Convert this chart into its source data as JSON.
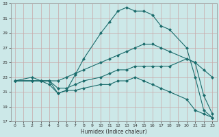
{
  "xlabel": "Humidex (Indice chaleur)",
  "bg_color": "#cce8e8",
  "line_color": "#1a6b6b",
  "grid_color": "#c8a8a8",
  "xlim": [
    -0.5,
    23.5
  ],
  "ylim": [
    17,
    33
  ],
  "yticks": [
    17,
    19,
    21,
    23,
    25,
    27,
    29,
    31,
    33
  ],
  "xticks": [
    0,
    1,
    2,
    3,
    4,
    5,
    6,
    7,
    8,
    9,
    10,
    11,
    12,
    13,
    14,
    15,
    16,
    17,
    18,
    19,
    20,
    21,
    22,
    23
  ],
  "line1_x": [
    0,
    2,
    3,
    4,
    5,
    6,
    7,
    8,
    10,
    11,
    12,
    13,
    14,
    15,
    16,
    17,
    18,
    20,
    21,
    22,
    23
  ],
  "line1_y": [
    22.5,
    23.0,
    22.5,
    22.5,
    20.8,
    21.2,
    23.3,
    25.5,
    29.0,
    30.5,
    32.0,
    32.5,
    32.0,
    32.0,
    31.5,
    30.0,
    29.5,
    27.0,
    23.0,
    18.5,
    17.5
  ],
  "line2_x": [
    0,
    2,
    3,
    4,
    5,
    6,
    7,
    8,
    10,
    11,
    12,
    13,
    14,
    15,
    16,
    17,
    18,
    20,
    21,
    22,
    23
  ],
  "line2_y": [
    22.5,
    22.5,
    22.5,
    22.5,
    22.5,
    23.0,
    23.5,
    24.0,
    25.0,
    25.5,
    26.0,
    26.5,
    27.0,
    27.5,
    27.5,
    27.0,
    26.5,
    25.5,
    25.0,
    24.0,
    23.0
  ],
  "line3_x": [
    0,
    2,
    3,
    4,
    5,
    6,
    7,
    8,
    10,
    11,
    12,
    13,
    14,
    15,
    16,
    17,
    18,
    20,
    21,
    22,
    23
  ],
  "line3_y": [
    22.5,
    22.5,
    22.5,
    22.5,
    21.5,
    21.5,
    22.0,
    22.5,
    23.0,
    23.5,
    24.0,
    24.0,
    24.5,
    24.5,
    24.5,
    24.5,
    24.5,
    25.5,
    25.0,
    20.5,
    18.0
  ],
  "line4_x": [
    0,
    2,
    3,
    4,
    5,
    6,
    7,
    8,
    10,
    11,
    12,
    13,
    14,
    15,
    16,
    17,
    18,
    20,
    21,
    22,
    23
  ],
  "line4_y": [
    22.5,
    22.5,
    22.5,
    22.0,
    20.8,
    21.2,
    21.2,
    21.5,
    22.0,
    22.0,
    22.5,
    22.5,
    23.0,
    22.5,
    22.0,
    21.5,
    21.0,
    20.0,
    18.5,
    18.0,
    17.5
  ]
}
